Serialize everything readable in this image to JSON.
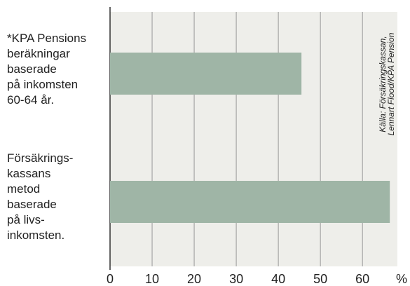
{
  "chart_data": {
    "type": "bar",
    "orientation": "horizontal",
    "categories": [
      [
        "*KPA Pensions",
        "beräkningar",
        "baserade",
        "på inkomsten",
        "60-64 år."
      ],
      [
        "Försäkrings-",
        "kassans",
        "metod",
        "baserade",
        "på livs-",
        "inkomsten."
      ]
    ],
    "values": [
      45.5,
      66.5
    ],
    "color": "#9fb5a6",
    "xlim": [
      0,
      68.3
    ],
    "xticks": [
      0,
      10,
      20,
      30,
      40,
      50,
      60
    ],
    "xlabel": "%",
    "grid": true,
    "source": [
      "Källa: Försäkringskassan,",
      "Lennart Flood/KPA Pension"
    ]
  }
}
